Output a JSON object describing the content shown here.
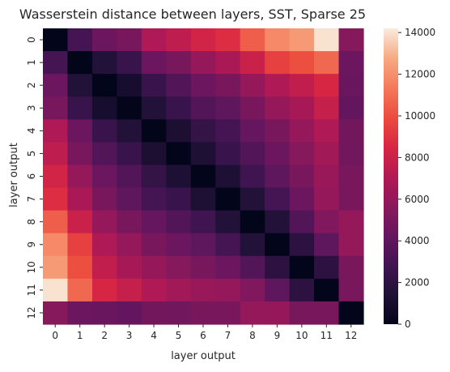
{
  "chart_data": {
    "type": "heatmap",
    "title": "Wasserstein distance between layers, SST, Sparse 25",
    "xlabel": "layer output",
    "ylabel": "layer output",
    "x_categories": [
      "0",
      "1",
      "2",
      "3",
      "4",
      "5",
      "6",
      "7",
      "8",
      "9",
      "10",
      "11",
      "12"
    ],
    "y_categories": [
      "0",
      "1",
      "2",
      "3",
      "4",
      "5",
      "6",
      "7",
      "8",
      "9",
      "10",
      "11",
      "12"
    ],
    "zlim": [
      0,
      14200
    ],
    "colorbar_ticks": [
      0,
      2000,
      4000,
      6000,
      8000,
      10000,
      12000,
      14000
    ],
    "colorbar_tick_labels": [
      "0",
      "2000",
      "4000",
      "6000",
      "8000",
      "10000",
      "12000",
      "14000"
    ],
    "colormap": "rocket",
    "grid": false,
    "values": [
      [
        0,
        3000,
        4500,
        5000,
        7000,
        7500,
        8300,
        8800,
        10500,
        11800,
        12300,
        14000,
        5500
      ],
      [
        3000,
        0,
        1500,
        2500,
        4500,
        5000,
        6000,
        6800,
        8000,
        9500,
        10000,
        10800,
        4500
      ],
      [
        4500,
        1500,
        0,
        1000,
        2500,
        3500,
        4500,
        5000,
        6000,
        7000,
        7700,
        8500,
        4400
      ],
      [
        5000,
        2500,
        1000,
        0,
        1500,
        2500,
        3500,
        4000,
        5000,
        6000,
        6700,
        7800,
        4200
      ],
      [
        7000,
        4500,
        2500,
        1500,
        0,
        1200,
        2300,
        3000,
        4300,
        5000,
        6000,
        7000,
        4800
      ],
      [
        7500,
        5000,
        3500,
        2500,
        1200,
        0,
        1300,
        2500,
        3500,
        4500,
        5500,
        6500,
        4700
      ],
      [
        8300,
        6000,
        4500,
        3500,
        2300,
        1300,
        0,
        1300,
        2800,
        4000,
        5000,
        6200,
        5000
      ],
      [
        8800,
        6800,
        5000,
        4000,
        3000,
        2500,
        1300,
        0,
        1500,
        3000,
        4500,
        6000,
        5000
      ],
      [
        10500,
        8000,
        6000,
        5000,
        4300,
        3500,
        2800,
        1500,
        0,
        1500,
        3500,
        5300,
        6000
      ],
      [
        11800,
        9500,
        7000,
        6000,
        5000,
        4500,
        4000,
        3000,
        1500,
        0,
        2000,
        4000,
        6000
      ],
      [
        12300,
        10000,
        7700,
        6700,
        6000,
        5500,
        5000,
        4500,
        3500,
        2000,
        0,
        2000,
        5000
      ],
      [
        14000,
        10800,
        8500,
        7800,
        7000,
        6500,
        6200,
        6000,
        5300,
        4000,
        2000,
        0,
        5000
      ],
      [
        5500,
        4500,
        4400,
        4200,
        4800,
        4700,
        5000,
        5000,
        6000,
        6000,
        5000,
        5000,
        0
      ]
    ]
  }
}
